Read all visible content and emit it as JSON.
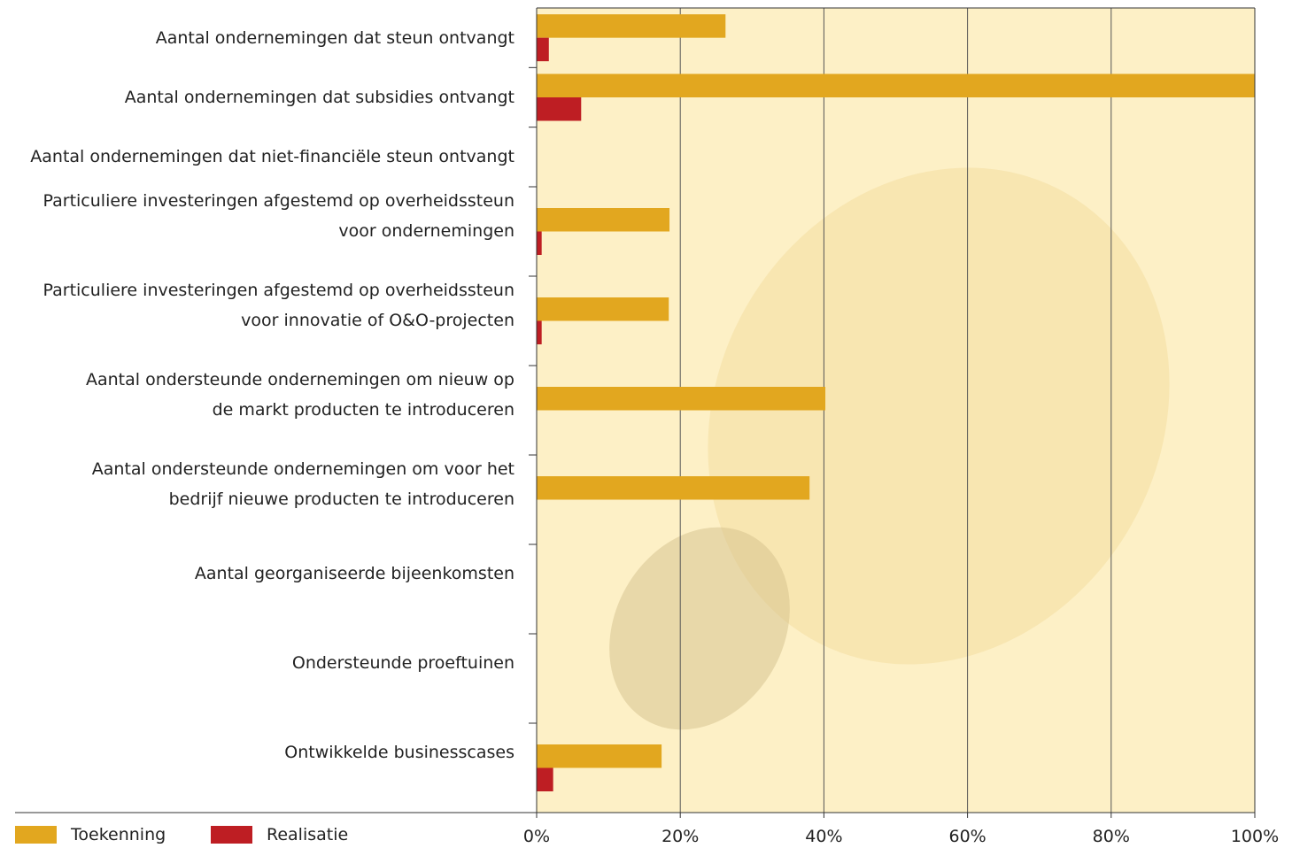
{
  "chart_data": {
    "type": "hbar",
    "categories": [
      "Aantal ondernemingen dat steun ontvangt",
      "Aantal ondernemingen dat subsidies ontvangt",
      "Aantal ondernemingen dat niet-financiële steun ontvangt",
      "Particuliere investeringen afgestemd op overheidssteun\nvoor ondernemingen",
      "Particuliere investeringen afgestemd op overheidssteun\nvoor innovatie of O&O-projecten",
      "Aantal ondersteunde ondernemingen om nieuw op\nde markt producten te introduceren",
      "Aantal ondersteunde ondernemingen om voor het\nbedrijf nieuwe producten te introduceren",
      "Aantal georganiseerde bijeenkomsten",
      "Ondersteunde proeftuinen",
      "Ontwikkelde businesscases"
    ],
    "series": [
      {
        "name": "Toekenning",
        "color": "#e2a71f",
        "values": [
          26.3,
          100,
          null,
          18.5,
          18.4,
          40.2,
          38,
          null,
          null,
          17.4
        ]
      },
      {
        "name": "Realisatie",
        "color": "#be1e23",
        "values": [
          1.7,
          6.2,
          null,
          0.7,
          0.7,
          null,
          null,
          null,
          null,
          2.3
        ]
      }
    ],
    "xlim": [
      0,
      100
    ],
    "xticks": [
      {
        "value": 0,
        "label": "0%"
      },
      {
        "value": 20,
        "label": "20%"
      },
      {
        "value": 40,
        "label": "40%"
      },
      {
        "value": 60,
        "label": "60%"
      },
      {
        "value": 80,
        "label": "80%"
      },
      {
        "value": 100,
        "label": "100%"
      }
    ],
    "grid": true
  }
}
